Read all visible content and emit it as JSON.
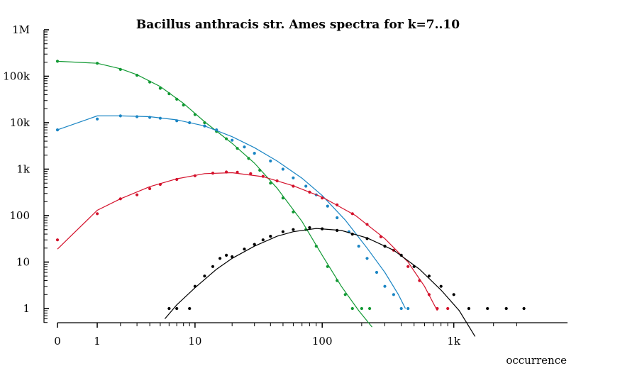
{
  "chart_data": {
    "type": "scatter",
    "title": "Bacillus anthracis str. Ames spectra for k=7..10",
    "xlabel": "occurrence",
    "ylabel": "",
    "x_scale": "log(1+x)",
    "y_scale": "log",
    "xlim": [
      0,
      3500
    ],
    "ylim": [
      0.5,
      1000000
    ],
    "grid": false,
    "x_ticks": [
      {
        "value": 0,
        "label": "0"
      },
      {
        "value": 1,
        "label": "1"
      },
      {
        "value": 10,
        "label": "10"
      },
      {
        "value": 100,
        "label": "100"
      },
      {
        "value": 1000,
        "label": "1k"
      }
    ],
    "y_ticks": [
      {
        "value": 1,
        "label": "1"
      },
      {
        "value": 10,
        "label": "10"
      },
      {
        "value": 100,
        "label": "100"
      },
      {
        "value": 1000,
        "label": "1k"
      },
      {
        "value": 10000,
        "label": "10k"
      },
      {
        "value": 100000,
        "label": "100k"
      },
      {
        "value": 1000000,
        "label": "1M"
      }
    ],
    "series": [
      {
        "color": "#119933",
        "points": [
          [
            0,
            210000
          ],
          [
            1,
            190000
          ],
          [
            2,
            140000
          ],
          [
            3,
            105000
          ],
          [
            4,
            75000
          ],
          [
            5,
            55000
          ],
          [
            6,
            42000
          ],
          [
            7,
            32000
          ],
          [
            8,
            24000
          ],
          [
            10,
            15000
          ],
          [
            12,
            10000
          ],
          [
            15,
            6500
          ],
          [
            18,
            4500
          ],
          [
            22,
            2800
          ],
          [
            27,
            1700
          ],
          [
            33,
            950
          ],
          [
            40,
            500
          ],
          [
            50,
            240
          ],
          [
            60,
            120
          ],
          [
            75,
            50
          ],
          [
            90,
            22
          ],
          [
            110,
            8
          ],
          [
            130,
            4
          ],
          [
            150,
            2
          ],
          [
            170,
            1
          ],
          [
            200,
            1
          ],
          [
            230,
            1
          ]
        ],
        "fit": [
          [
            0,
            210000
          ],
          [
            1,
            190000
          ],
          [
            2,
            145000
          ],
          [
            3,
            108000
          ],
          [
            5,
            60000
          ],
          [
            8,
            26000
          ],
          [
            12,
            10500
          ],
          [
            20,
            3600
          ],
          [
            30,
            1350
          ],
          [
            45,
            390
          ],
          [
            70,
            75
          ],
          [
            100,
            14
          ],
          [
            140,
            3
          ],
          [
            190,
            0.9
          ],
          [
            240,
            0.4
          ]
        ]
      },
      {
        "color": "#1a85c4",
        "points": [
          [
            0,
            7000
          ],
          [
            1,
            12000
          ],
          [
            2,
            14000
          ],
          [
            3,
            13500
          ],
          [
            4,
            13000
          ],
          [
            5,
            12500
          ],
          [
            7,
            11000
          ],
          [
            9,
            10000
          ],
          [
            12,
            8500
          ],
          [
            15,
            7000
          ],
          [
            20,
            4200
          ],
          [
            25,
            3000
          ],
          [
            30,
            2200
          ],
          [
            40,
            1500
          ],
          [
            50,
            1000
          ],
          [
            60,
            650
          ],
          [
            75,
            430
          ],
          [
            90,
            280
          ],
          [
            110,
            160
          ],
          [
            130,
            90
          ],
          [
            160,
            45
          ],
          [
            190,
            22
          ],
          [
            220,
            12
          ],
          [
            260,
            6
          ],
          [
            300,
            3
          ],
          [
            350,
            2
          ],
          [
            400,
            1
          ],
          [
            450,
            1
          ]
        ],
        "fit": [
          [
            0,
            7000
          ],
          [
            1,
            14000
          ],
          [
            2,
            14000
          ],
          [
            4,
            13500
          ],
          [
            7,
            11500
          ],
          [
            12,
            8500
          ],
          [
            20,
            5000
          ],
          [
            30,
            2900
          ],
          [
            45,
            1500
          ],
          [
            70,
            640
          ],
          [
            100,
            270
          ],
          [
            150,
            80
          ],
          [
            220,
            20
          ],
          [
            300,
            6
          ],
          [
            380,
            2
          ],
          [
            430,
            1
          ]
        ]
      },
      {
        "color": "#d4122c",
        "points": [
          [
            0,
            30
          ],
          [
            1,
            110
          ],
          [
            2,
            230
          ],
          [
            3,
            280
          ],
          [
            4,
            380
          ],
          [
            5,
            470
          ],
          [
            7,
            600
          ],
          [
            10,
            720
          ],
          [
            14,
            820
          ],
          [
            18,
            870
          ],
          [
            22,
            860
          ],
          [
            28,
            800
          ],
          [
            35,
            700
          ],
          [
            45,
            560
          ],
          [
            60,
            430
          ],
          [
            80,
            320
          ],
          [
            100,
            240
          ],
          [
            130,
            170
          ],
          [
            170,
            110
          ],
          [
            220,
            65
          ],
          [
            280,
            35
          ],
          [
            350,
            18
          ],
          [
            450,
            8
          ],
          [
            550,
            4
          ],
          [
            650,
            2
          ],
          [
            750,
            1
          ],
          [
            900,
            1
          ]
        ],
        "fit": [
          [
            0,
            19
          ],
          [
            1,
            130
          ],
          [
            2,
            230
          ],
          [
            4,
            420
          ],
          [
            7,
            620
          ],
          [
            12,
            800
          ],
          [
            20,
            840
          ],
          [
            35,
            690
          ],
          [
            60,
            440
          ],
          [
            100,
            250
          ],
          [
            180,
            100
          ],
          [
            300,
            32
          ],
          [
            450,
            10
          ],
          [
            600,
            3
          ],
          [
            750,
            0.9
          ]
        ]
      },
      {
        "color": "#000000",
        "points": [
          [
            6,
            1
          ],
          [
            7,
            1
          ],
          [
            9,
            1
          ],
          [
            10,
            3
          ],
          [
            12,
            5
          ],
          [
            14,
            8
          ],
          [
            16,
            12
          ],
          [
            18,
            14
          ],
          [
            20,
            13
          ],
          [
            25,
            19
          ],
          [
            30,
            24
          ],
          [
            35,
            30
          ],
          [
            40,
            36
          ],
          [
            50,
            45
          ],
          [
            60,
            50
          ],
          [
            80,
            55
          ],
          [
            100,
            52
          ],
          [
            130,
            48
          ],
          [
            170,
            40
          ],
          [
            220,
            32
          ],
          [
            300,
            22
          ],
          [
            400,
            14
          ],
          [
            500,
            8
          ],
          [
            650,
            5
          ],
          [
            800,
            3
          ],
          [
            1000,
            2
          ],
          [
            1300,
            1
          ],
          [
            1800,
            1
          ],
          [
            2500,
            1
          ],
          [
            3400,
            1
          ]
        ],
        "fit": [
          [
            5.5,
            0.6
          ],
          [
            7,
            1.2
          ],
          [
            10,
            2.8
          ],
          [
            15,
            7
          ],
          [
            20,
            12
          ],
          [
            30,
            22
          ],
          [
            45,
            36
          ],
          [
            60,
            45
          ],
          [
            90,
            53
          ],
          [
            140,
            48
          ],
          [
            220,
            33
          ],
          [
            350,
            18
          ],
          [
            550,
            7
          ],
          [
            800,
            2.5
          ],
          [
            1100,
            0.9
          ],
          [
            1450,
            0.25
          ]
        ]
      }
    ]
  }
}
